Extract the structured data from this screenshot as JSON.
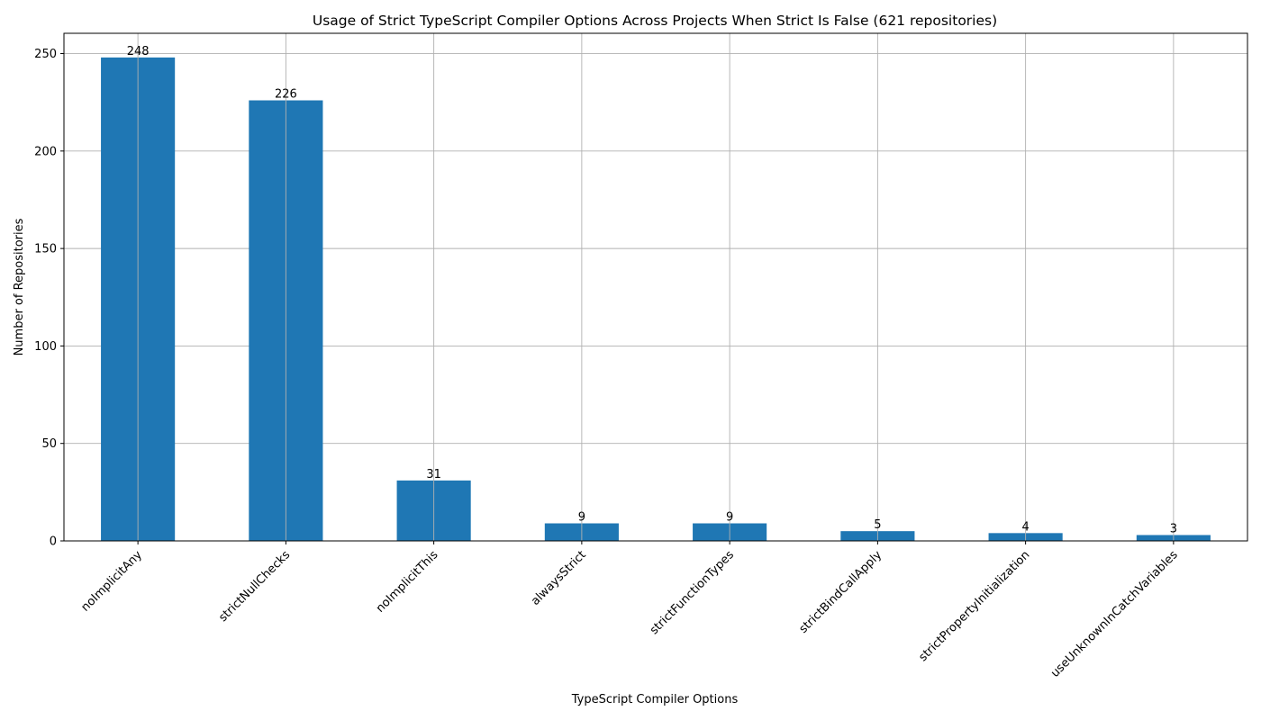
{
  "chart_data": {
    "type": "bar",
    "title": "Usage of Strict TypeScript Compiler Options Across Projects When Strict Is False (621 repositories)",
    "xlabel": "TypeScript Compiler Options",
    "ylabel": "Number of Repositories",
    "categories": [
      "noImplicitAny",
      "strictNullChecks",
      "noImplicitThis",
      "alwaysStrict",
      "strictFunctionTypes",
      "strictBindCallApply",
      "strictPropertyInitialization",
      "useUnknownInCatchVariables"
    ],
    "values": [
      248,
      226,
      31,
      9,
      9,
      5,
      4,
      3
    ],
    "data_labels": [
      "248",
      "226",
      "31",
      "9",
      "9",
      "5",
      "4",
      "3"
    ],
    "ylim": [
      0,
      260.4
    ],
    "yticks": [
      0,
      50,
      100,
      150,
      200,
      250
    ],
    "ytick_labels": [
      "0",
      "50",
      "100",
      "150",
      "200",
      "250"
    ],
    "grid": true,
    "legend": "none",
    "x_tick_rotation": -45,
    "colors": {
      "bar": "#1f77b4",
      "grid": "#b0b0b0",
      "axis": "#000000",
      "text": "#000000"
    }
  }
}
